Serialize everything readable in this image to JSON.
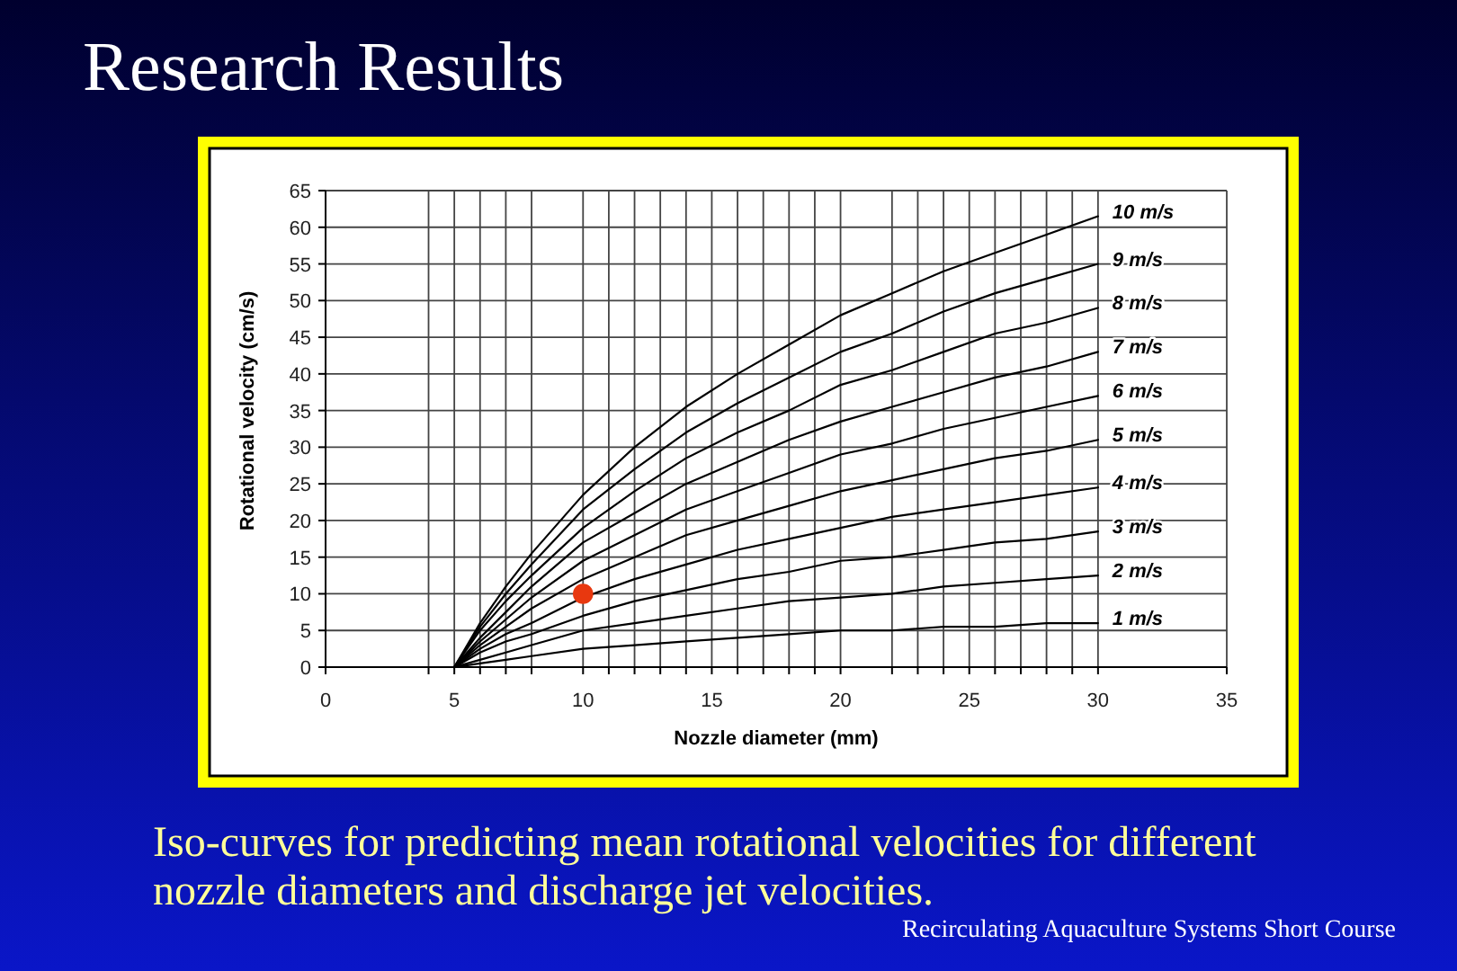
{
  "chart_data": {
    "type": "line",
    "title": "Research Results",
    "xlabel": "Nozzle diameter (mm)",
    "ylabel": "Rotational velocity (cm/s)",
    "annotations": [
      "Iso-curves for predicting mean rotational velocities for different nozzle diameters and discharge jet velocities.",
      "Recirculating Aquaculture Systems Short Course"
    ],
    "x": [
      5,
      6,
      7,
      8,
      10,
      12,
      14,
      16,
      18,
      20,
      22,
      24,
      26,
      28,
      30
    ],
    "series": [
      {
        "name": "10 m/s",
        "color": "#000000",
        "values": [
          0,
          6,
          11,
          15.5,
          23.5,
          30,
          35.5,
          40,
          44,
          48,
          51,
          54,
          56.5,
          59,
          61.5
        ]
      },
      {
        "name": "9 m/s",
        "color": "#000000",
        "values": [
          0,
          5.5,
          10,
          14,
          21.5,
          27,
          32,
          36,
          39.5,
          43,
          45.5,
          48.5,
          51,
          53,
          55
        ]
      },
      {
        "name": "8 m/s",
        "color": "#000000",
        "values": [
          0,
          5,
          9,
          12.5,
          19,
          24,
          28.5,
          32,
          35,
          38.5,
          40.5,
          43,
          45.5,
          47,
          49
        ]
      },
      {
        "name": "7 m/s",
        "color": "#000000",
        "values": [
          0,
          4,
          7.5,
          11,
          17,
          21,
          25,
          28,
          31,
          33.5,
          35.5,
          37.5,
          39.5,
          41,
          43
        ]
      },
      {
        "name": "6 m/s",
        "color": "#000000",
        "values": [
          0,
          3.5,
          6.5,
          9.5,
          14.5,
          18,
          21.5,
          24,
          26.5,
          29,
          30.5,
          32.5,
          34,
          35.5,
          37
        ]
      },
      {
        "name": "5 m/s",
        "color": "#000000",
        "values": [
          0,
          3,
          5.5,
          8,
          12,
          15,
          18,
          20,
          22,
          24,
          25.5,
          27,
          28.5,
          29.5,
          31
        ]
      },
      {
        "name": "4 m/s",
        "color": "#000000",
        "values": [
          0,
          2.5,
          4.5,
          6,
          9.5,
          12,
          14,
          16,
          17.5,
          19,
          20.5,
          21.5,
          22.5,
          23.5,
          24.5
        ]
      },
      {
        "name": "3 m/s",
        "color": "#000000",
        "values": [
          0,
          2,
          3.5,
          4.5,
          7,
          9,
          10.5,
          12,
          13,
          14.5,
          15,
          16,
          17,
          17.5,
          18.5
        ]
      },
      {
        "name": "2 m/s",
        "color": "#000000",
        "values": [
          0,
          1,
          2,
          3,
          5,
          6,
          7,
          8,
          9,
          9.5,
          10,
          11,
          11.5,
          12,
          12.5
        ]
      },
      {
        "name": "1 m/s",
        "color": "#000000",
        "values": [
          0,
          0.5,
          1,
          1.5,
          2.5,
          3,
          3.5,
          4,
          4.5,
          5,
          5,
          5.5,
          5.5,
          6,
          6
        ]
      },
      {
        "type": "scatter",
        "marker": "circle",
        "color": "#e8380f",
        "x": [
          10
        ],
        "values": [
          10
        ]
      }
    ],
    "xlim": [
      0,
      35
    ],
    "ylim": [
      0,
      65
    ],
    "xticks": [
      0,
      {
        "value": 4,
        "label": null
      },
      5,
      {
        "value": 6,
        "label": null
      },
      {
        "value": 7,
        "label": null
      },
      {
        "value": 8,
        "label": null
      },
      10,
      {
        "value": 11,
        "label": null
      },
      {
        "value": 12,
        "label": null
      },
      {
        "value": 13,
        "label": null
      },
      {
        "value": 14,
        "label": null
      },
      15,
      {
        "value": 16,
        "label": null
      },
      {
        "value": 17,
        "label": null
      },
      {
        "value": 18,
        "label": null
      },
      {
        "value": 19,
        "label": null
      },
      20,
      {
        "value": 22,
        "label": null
      },
      {
        "value": 23,
        "label": null
      },
      {
        "value": 24,
        "label": null
      },
      25,
      {
        "value": 26,
        "label": null
      },
      {
        "value": 27,
        "label": null
      },
      {
        "value": 28,
        "label": null
      },
      {
        "value": 29,
        "label": null
      },
      30,
      35
    ],
    "yticks": [
      0,
      5,
      10,
      15,
      20,
      25,
      30,
      35,
      40,
      45,
      50,
      55,
      60,
      65
    ],
    "grid": true,
    "marker": "none",
    "line_style": "solid"
  }
}
